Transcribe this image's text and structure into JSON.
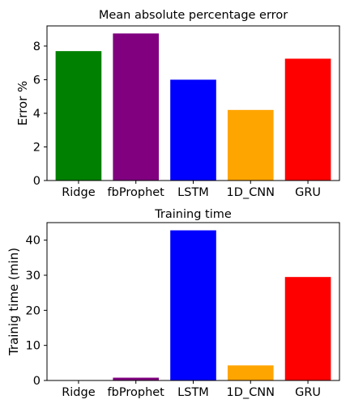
{
  "chart_data": [
    {
      "type": "bar",
      "title": "Mean absolute percentage error",
      "xlabel": "",
      "ylabel": "Error %",
      "categories": [
        "Ridge",
        "fbProphet",
        "LSTM",
        "1D_CNN",
        "GRU"
      ],
      "values": [
        7.7,
        8.75,
        6.0,
        4.2,
        7.25
      ],
      "colors": [
        "#008000",
        "#800080",
        "#0000ff",
        "#ffa500",
        "#ff0000"
      ],
      "ylim": [
        0,
        9.2
      ],
      "yticks": [
        0,
        2,
        4,
        6,
        8
      ],
      "grid": false
    },
    {
      "type": "bar",
      "title": "Training time",
      "xlabel": "",
      "ylabel": "Trainig time (min)",
      "categories": [
        "Ridge",
        "fbProphet",
        "LSTM",
        "1D_CNN",
        "GRU"
      ],
      "values": [
        0.05,
        0.8,
        42.8,
        4.3,
        29.5
      ],
      "colors": [
        "#008000",
        "#800080",
        "#0000ff",
        "#ffa500",
        "#ff0000"
      ],
      "ylim": [
        0,
        45
      ],
      "yticks": [
        0,
        10,
        20,
        30,
        40
      ],
      "grid": false
    }
  ]
}
